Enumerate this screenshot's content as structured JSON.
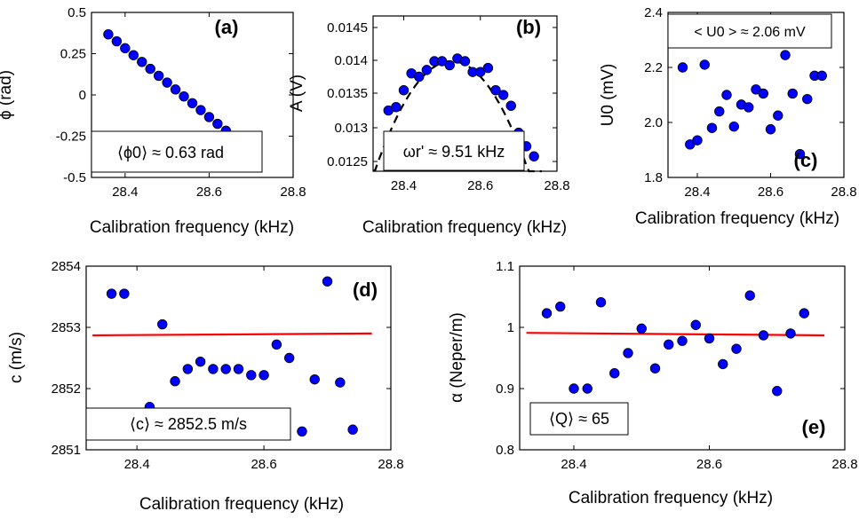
{
  "chart_data": [
    {
      "panel": "(a)",
      "type": "scatter",
      "xlabel": "Calibration frequency (kHz)",
      "ylabel": "ϕ (rad)",
      "x_ticks": [
        "28.4",
        "28.6",
        "28.8"
      ],
      "y_ticks": [
        "0.5",
        "0.25",
        "0",
        "-0.25",
        "-0.5"
      ],
      "xlim": [
        28.32,
        28.8
      ],
      "ylim": [
        -0.5,
        0.5
      ],
      "x": [
        28.36,
        28.38,
        28.4,
        28.42,
        28.44,
        28.46,
        28.48,
        28.5,
        28.52,
        28.54,
        28.56,
        28.58,
        28.6,
        28.62,
        28.64
      ],
      "y": [
        0.367,
        0.325,
        0.283,
        0.241,
        0.2,
        0.158,
        0.116,
        0.075,
        0.033,
        -0.009,
        -0.05,
        -0.092,
        -0.134,
        -0.175,
        -0.217
      ],
      "annotation": "⟨ϕ0⟩ ≈ 0.63 rad"
    },
    {
      "panel": "(b)",
      "type": "scatter",
      "xlabel": "Calibration frequency (kHz)",
      "ylabel": "A (V)",
      "x_ticks": [
        "28.4",
        "28.6",
        "28.8"
      ],
      "y_ticks": [
        "0.0145",
        "0.014",
        "0.0135",
        "0.013",
        "0.0125"
      ],
      "xlim": [
        28.32,
        28.8
      ],
      "ylim": [
        0.01245,
        0.01475
      ],
      "x": [
        28.36,
        28.38,
        28.4,
        28.42,
        28.44,
        28.46,
        28.48,
        28.5,
        28.52,
        28.54,
        28.56,
        28.58,
        28.6,
        28.62,
        28.64,
        28.66,
        28.68,
        28.7,
        28.72,
        28.74
      ],
      "y": [
        0.01335,
        0.0134,
        0.01365,
        0.0139,
        0.01385,
        0.01395,
        0.01408,
        0.01408,
        0.01402,
        0.01412,
        0.01408,
        0.01392,
        0.01392,
        0.01398,
        0.01365,
        0.01358,
        0.01342,
        0.01302,
        0.01282,
        0.01267
      ],
      "fit_curve": {
        "style": "dashed",
        "center": 28.525,
        "peak": 0.01408,
        "curvature": 0.0405,
        "xrange": [
          28.32,
          28.76
        ]
      },
      "annotation": "ωr' ≈ 9.51 kHz"
    },
    {
      "panel": "(c)",
      "type": "scatter",
      "xlabel": "Calibration frequency (kHz)",
      "ylabel": "U0 (mV)",
      "x_ticks": [
        "28.4",
        "28.6",
        "28.8"
      ],
      "y_ticks": [
        "2.4",
        "2.2",
        "2.0",
        "1.8"
      ],
      "xlim": [
        28.32,
        28.8
      ],
      "ylim": [
        1.8,
        2.4
      ],
      "x": [
        28.36,
        28.38,
        28.4,
        28.42,
        28.44,
        28.46,
        28.48,
        28.5,
        28.52,
        28.54,
        28.56,
        28.58,
        28.6,
        28.62,
        28.64,
        28.66,
        28.68,
        28.7,
        28.72,
        28.74
      ],
      "y": [
        2.2,
        1.92,
        1.935,
        2.21,
        1.98,
        2.04,
        2.1,
        1.985,
        2.065,
        2.055,
        2.12,
        2.105,
        1.975,
        2.025,
        2.245,
        2.105,
        1.885,
        2.085,
        2.17,
        2.17
      ],
      "annotation": "< U0 > ≈ 2.06 mV"
    },
    {
      "panel": "(d)",
      "type": "scatter",
      "xlabel": "Calibration frequency (kHz)",
      "ylabel": "c (m/s)",
      "x_ticks": [
        "28.4",
        "28.6",
        "28.8"
      ],
      "y_ticks": [
        "2854",
        "2853",
        "2852",
        "2851"
      ],
      "xlim": [
        28.32,
        28.8
      ],
      "ylim": [
        2851,
        2854
      ],
      "x": [
        28.36,
        28.38,
        28.4,
        28.42,
        28.44,
        28.46,
        28.48,
        28.5,
        28.52,
        28.54,
        28.56,
        28.58,
        28.6,
        28.62,
        28.64,
        28.66,
        28.68,
        28.7,
        28.72,
        28.74
      ],
      "y": [
        2853.55,
        2853.55,
        2851.6,
        2851.7,
        2853.05,
        2852.12,
        2852.32,
        2852.44,
        2852.32,
        2852.32,
        2852.32,
        2852.22,
        2852.22,
        2852.72,
        2852.5,
        2851.3,
        2852.15,
        2853.75,
        2852.1,
        2851.33
      ],
      "fit_line": {
        "x": [
          28.33,
          28.77
        ],
        "y": [
          2852.87,
          2852.9
        ]
      },
      "annotation": "⟨c⟩ ≈ 2852.5 m/s"
    },
    {
      "panel": "(e)",
      "type": "scatter",
      "xlabel": "Calibration frequency (kHz)",
      "ylabel": "α (Neper/m)",
      "x_ticks": [
        "28.4",
        "28.6",
        "28.8"
      ],
      "y_ticks": [
        "1.1",
        "1",
        "0.9",
        "0.8"
      ],
      "xlim": [
        28.32,
        28.8
      ],
      "ylim": [
        0.8,
        1.1
      ],
      "x": [
        28.36,
        28.38,
        28.4,
        28.42,
        28.44,
        28.46,
        28.48,
        28.5,
        28.52,
        28.54,
        28.56,
        28.58,
        28.6,
        28.62,
        28.64,
        28.66,
        28.68,
        28.7,
        28.72,
        28.74
      ],
      "y": [
        1.023,
        1.034,
        0.9,
        0.9,
        1.041,
        0.925,
        0.958,
        0.998,
        0.933,
        0.972,
        0.978,
        1.004,
        0.982,
        0.94,
        0.965,
        1.052,
        0.987,
        0.896,
        0.99,
        1.023
      ],
      "fit_line": {
        "x": [
          28.33,
          28.77
        ],
        "y": [
          0.991,
          0.987
        ]
      },
      "annotation": "⟨Q⟩ ≈ 65"
    }
  ],
  "colors": {
    "marker_fill": "#0000ff",
    "marker_edge": "#000000",
    "fit_red": "#ff0000",
    "fit_dashed": "#000000"
  }
}
